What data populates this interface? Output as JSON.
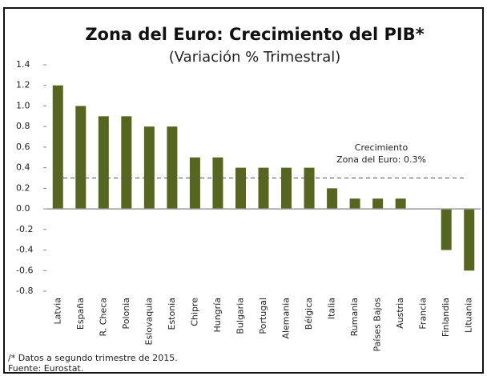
{
  "chart_data": {
    "type": "bar",
    "title": "Zona del Euro: Crecimiento del PIB*",
    "subtitle": "(Variación % Trimestral)",
    "categories": [
      "Latvia",
      "España",
      "R. Checa",
      "Polonia",
      "Eslovaquia",
      "Estonia",
      "Chipre",
      "Hungría",
      "Bulgaria",
      "Portugal",
      "Alemania",
      "Bélgica",
      "Italia",
      "Rumania",
      "Países Bajos",
      "Austria",
      "Francia",
      "Finlandia",
      "Lituania"
    ],
    "values": [
      1.2,
      1.0,
      0.9,
      0.9,
      0.8,
      0.8,
      0.5,
      0.5,
      0.4,
      0.4,
      0.4,
      0.4,
      0.2,
      0.1,
      0.1,
      0.1,
      0.0,
      -0.4,
      -0.6
    ],
    "color": "#56661f",
    "ylim": [
      -0.8,
      1.4
    ],
    "yticks": [
      1.4,
      1.2,
      {
        "value": 1,
        "label": "1.0"
      },
      0.8,
      0.6,
      0.4,
      0.2,
      {
        "value": 0,
        "label": "0.0"
      },
      -0.2,
      -0.4,
      -0.6,
      -0.8
    ],
    "reference_line": {
      "value": 0.3,
      "label": [
        "Crecimiento",
        "Zona del Euro: 0.3%"
      ]
    },
    "footnotes": [
      "/* Datos a segundo trimestre de 2015.",
      "Fuente: Eurostat."
    ]
  }
}
